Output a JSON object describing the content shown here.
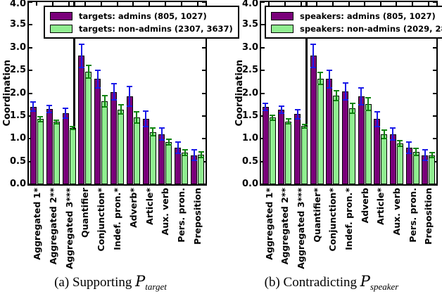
{
  "colors": {
    "admins_bar": "#7A007A",
    "non_admins_bar": "#90EE90",
    "admins_error": "#1A1AE8",
    "non_admins_error": "#0E840E",
    "bar_edge": "#000000"
  },
  "captions": [
    {
      "label": "(a)",
      "text": "Supporting",
      "symbol": "P",
      "subscript": "target"
    },
    {
      "label": "(b)",
      "text": "Contradicting",
      "symbol": "P",
      "subscript": "speaker"
    }
  ],
  "chart_data": [
    {
      "type": "bar",
      "title": "",
      "xlabel": "",
      "ylabel": "Coordination",
      "ylim": [
        0.0,
        4.0
      ],
      "yticks": [
        "0.0",
        "0.5",
        "1.0",
        "1.5",
        "2.0",
        "2.5",
        "3.0",
        "3.5",
        "4.0"
      ],
      "grid": false,
      "legend_position": "upper left",
      "separator_after_index": 3,
      "categories": [
        "Aggregated 1*",
        "Aggregated 2**",
        "Aggregated 3***",
        "Quantifier",
        "Conjunction*",
        "Indef. pron.*",
        "Adverb*",
        "Article*",
        "Aux. verb",
        "Pers. pron.",
        "Preposition"
      ],
      "series": [
        {
          "name": "targets: admins (805, 1027)",
          "color_key": "admins_bar",
          "error_color_key": "admins_error",
          "values": [
            1.7,
            1.65,
            1.56,
            2.82,
            2.31,
            2.03,
            1.93,
            1.43,
            1.1,
            0.8,
            0.64
          ],
          "errors": [
            0.1,
            0.08,
            0.11,
            0.25,
            0.19,
            0.18,
            0.21,
            0.17,
            0.13,
            0.12,
            0.11
          ]
        },
        {
          "name": "targets: non-admins (2307, 3637)",
          "color_key": "non_admins_bar",
          "error_color_key": "non_admins_error",
          "values": [
            1.43,
            1.37,
            1.23,
            2.47,
            1.82,
            1.64,
            1.47,
            1.15,
            0.93,
            0.7,
            0.65
          ],
          "errors": [
            0.05,
            0.04,
            0.03,
            0.14,
            0.12,
            0.1,
            0.12,
            0.08,
            0.06,
            0.06,
            0.06
          ]
        }
      ]
    },
    {
      "type": "bar",
      "title": "",
      "xlabel": "",
      "ylabel": "Coordination",
      "ylim": [
        0.0,
        4.0
      ],
      "yticks": [
        "0.0",
        "0.5",
        "1.0",
        "1.5",
        "2.0",
        "2.5",
        "3.0",
        "3.5",
        "4.0"
      ],
      "grid": false,
      "legend_position": "upper left",
      "separator_after_index": 3,
      "categories": [
        "Aggregated 1*",
        "Aggregated 2**",
        "Aggregated 3***",
        "Quantifier*",
        "Conjunction*",
        "Indef. pron.*",
        "Adverb",
        "Article*",
        "Aux. verb",
        "Pers. pron.",
        "Preposition"
      ],
      "series": [
        {
          "name": "speakers: admins (805, 1027)",
          "color_key": "admins_bar",
          "error_color_key": "admins_error",
          "values": [
            1.7,
            1.64,
            1.54,
            2.82,
            2.31,
            2.04,
            1.93,
            1.43,
            1.1,
            0.8,
            0.64
          ],
          "errors": [
            0.08,
            0.08,
            0.1,
            0.25,
            0.19,
            0.19,
            0.19,
            0.16,
            0.13,
            0.12,
            0.11
          ]
        },
        {
          "name": "speakers: non-admins (2029, 2856)",
          "color_key": "non_admins_bar",
          "error_color_key": "non_admins_error",
          "values": [
            1.46,
            1.38,
            1.28,
            2.32,
            1.95,
            1.67,
            1.76,
            1.1,
            0.9,
            0.71,
            0.64
          ],
          "errors": [
            0.06,
            0.05,
            0.04,
            0.13,
            0.11,
            0.11,
            0.14,
            0.09,
            0.06,
            0.07,
            0.06
          ]
        }
      ]
    }
  ]
}
